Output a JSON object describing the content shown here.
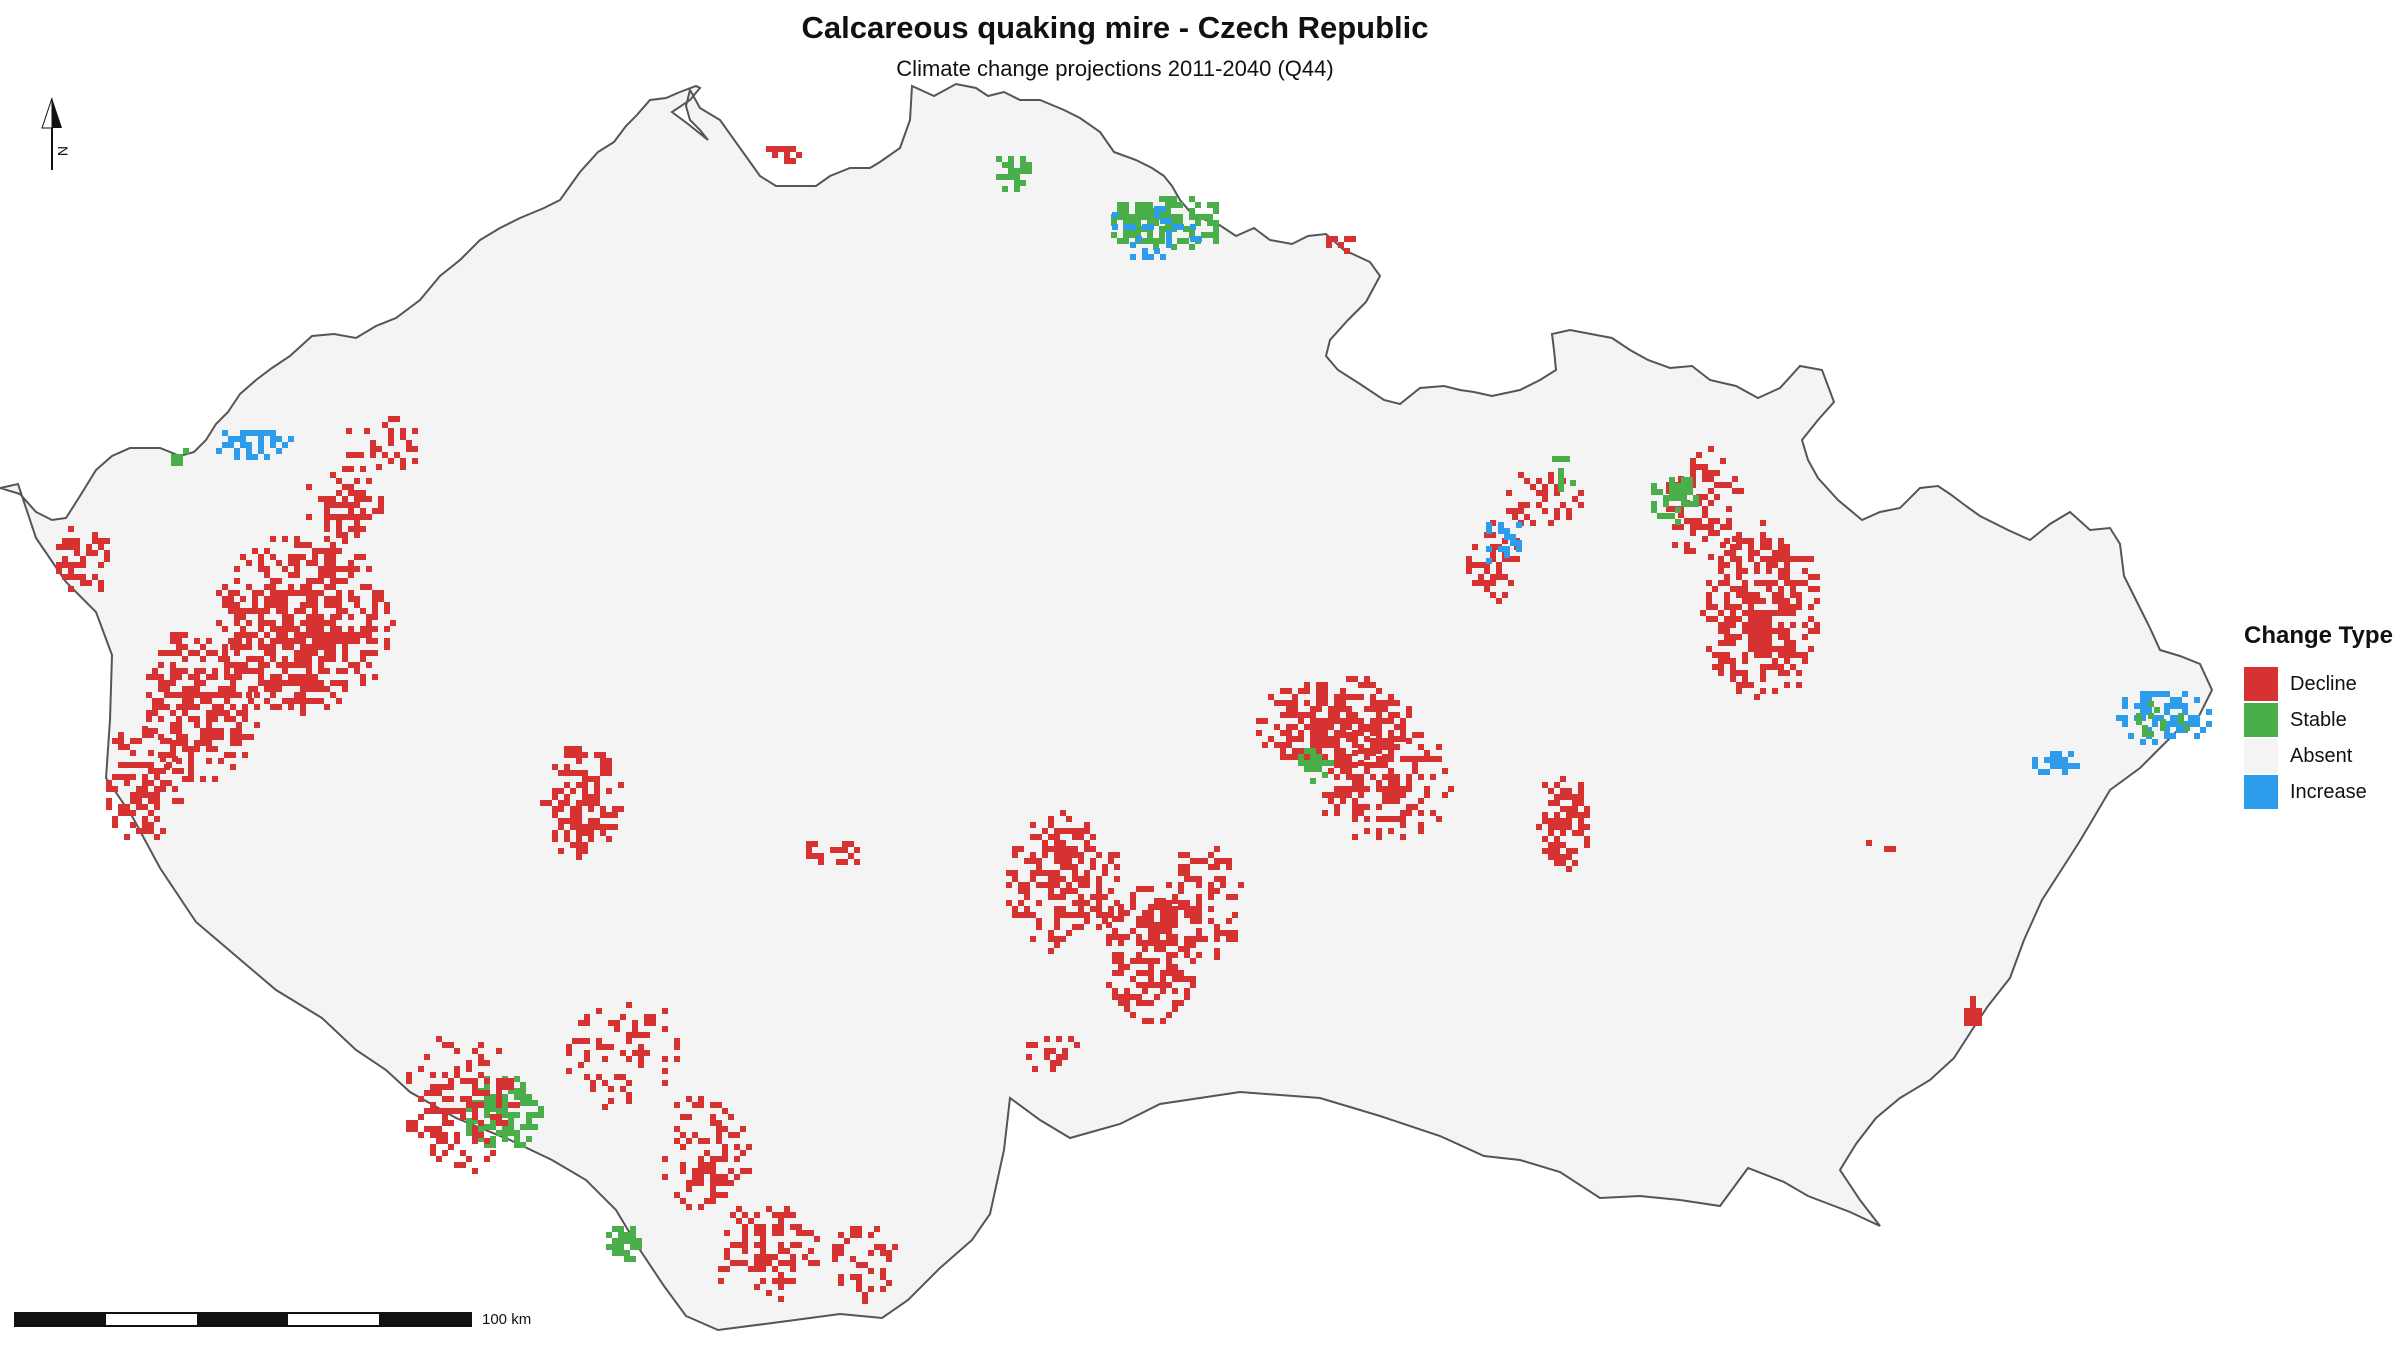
{
  "title": "Calcareous quaking mire - Czech Republic",
  "subtitle": "Climate change projections 2011-2040 (Q44)",
  "north_label": "N",
  "legend": {
    "title": "Change Type",
    "items": [
      {
        "label": "Decline",
        "color": "#d73232"
      },
      {
        "label": "Stable",
        "color": "#4aae4a"
      },
      {
        "label": "Absent",
        "color": "#f4f4f4"
      },
      {
        "label": "Increase",
        "color": "#2c9ceb"
      }
    ]
  },
  "scale_bar": {
    "label": "100 km"
  },
  "map": {
    "land_color": "#f4f4f4",
    "border_color": "#555555",
    "icon": "north-arrow-icon"
  }
}
